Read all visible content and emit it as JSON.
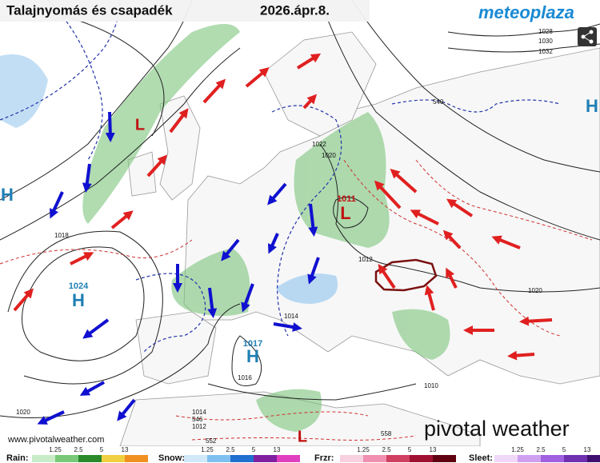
{
  "header": {
    "title": "Talajnyomás és csapadék",
    "date": "2026.ápr.8.",
    "logo": "meteoplaza"
  },
  "pressure_centers": [
    {
      "letter": "H",
      "value": "1024"
    },
    {
      "letter": "H",
      "value": "1017"
    },
    {
      "letter": "L",
      "value": "1011"
    },
    {
      "letter": "L"
    },
    {
      "letter": "H"
    },
    {
      "letter": "H"
    },
    {
      "letter": "L"
    }
  ],
  "isobar_labels": [
    "1028",
    "1030",
    "1032",
    "1022",
    "1020",
    "1018",
    "1012",
    "1014",
    "1016",
    "1010",
    "1020",
    "1020",
    "1014",
    "1012",
    "540",
    "546",
    "552",
    "558"
  ],
  "credit": "www.pivotalweather.com",
  "brand": "pivotal weather",
  "legend": [
    {
      "label": "Rain:",
      "ticks": [
        "1.25",
        "2.5",
        "5",
        "13"
      ]
    },
    {
      "label": "Snow:",
      "ticks": [
        "1.25",
        "2.5",
        "5",
        "13"
      ]
    },
    {
      "label": "Frzr:",
      "ticks": [
        "1.25",
        "2.5",
        "5",
        "13"
      ]
    },
    {
      "label": "Sleet:",
      "ticks": [
        "1.25",
        "2.5",
        "5",
        "13"
      ]
    }
  ]
}
